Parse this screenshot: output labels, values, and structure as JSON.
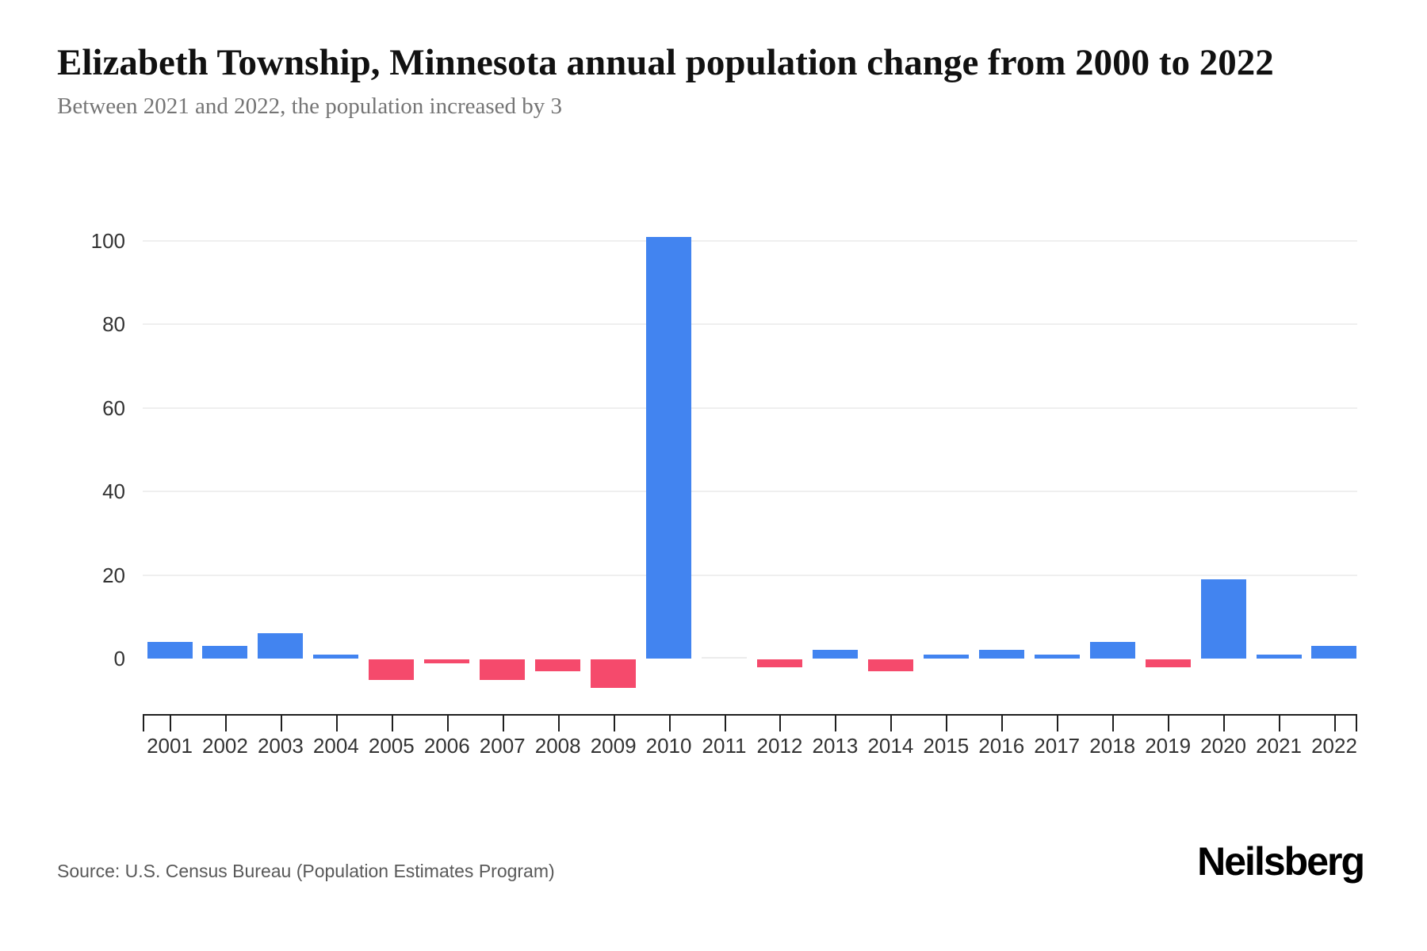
{
  "header": {
    "title": "Elizabeth Township, Minnesota annual population change from 2000 to 2022",
    "subtitle": "Between 2021 and 2022, the population increased by 3"
  },
  "chart_data": {
    "type": "bar",
    "title": "Elizabeth Township, Minnesota annual population change from 2000 to 2022",
    "xlabel": "",
    "ylabel": "",
    "categories": [
      "2001",
      "2002",
      "2003",
      "2004",
      "2005",
      "2006",
      "2007",
      "2008",
      "2009",
      "2010",
      "2011",
      "2012",
      "2013",
      "2014",
      "2015",
      "2016",
      "2017",
      "2018",
      "2019",
      "2020",
      "2021",
      "2022"
    ],
    "values": [
      4,
      3,
      6,
      1,
      -5,
      -1,
      -5,
      -3,
      -7,
      101,
      0,
      -2,
      2,
      -3,
      1,
      2,
      1,
      4,
      -2,
      19,
      1,
      3
    ],
    "yticks": [
      0,
      20,
      40,
      60,
      80,
      100
    ],
    "ylim": [
      -13,
      104
    ],
    "grid": true,
    "legend": false,
    "colors": {
      "positive": "#4284F0",
      "negative": "#F54A6C",
      "zero_bar": "#ECECEC"
    }
  },
  "footer": {
    "source": "Source: U.S. Census Bureau (Population Estimates Program)",
    "logo": "Neilsberg"
  }
}
